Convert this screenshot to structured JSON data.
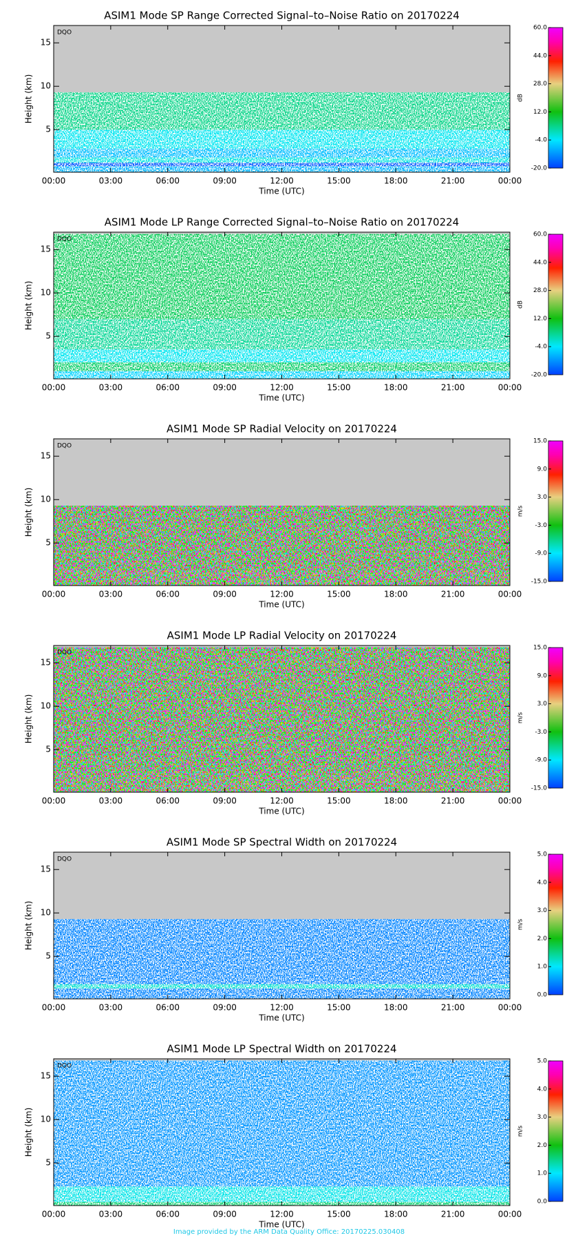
{
  "chart_data": [
    {
      "type": "heatmap",
      "title": "ASIM1 Mode SP Range Corrected Signal–to–Noise Ratio on 20170224",
      "x_label": "Time (UTC)",
      "y_label": "Height (km)",
      "flag": "DQO",
      "colorbar_label": "dB",
      "xlim": [
        0,
        24
      ],
      "xticks": [
        {
          "value": 0,
          "label": "00:00"
        },
        {
          "value": 3,
          "label": "03:00"
        },
        {
          "value": 6,
          "label": "06:00"
        },
        {
          "value": 9,
          "label": "09:00"
        },
        {
          "value": 12,
          "label": "12:00"
        },
        {
          "value": 15,
          "label": "15:00"
        },
        {
          "value": 18,
          "label": "18:00"
        },
        {
          "value": 21,
          "label": "21:00"
        },
        {
          "value": 24,
          "label": "00:00"
        }
      ],
      "ylim": [
        0.1,
        17
      ],
      "yticks": [
        5,
        10,
        15
      ],
      "clim": [
        -20,
        60
      ],
      "cticks": [
        {
          "value": -20,
          "label": "-20.0"
        },
        {
          "value": -4,
          "label": "-4.0"
        },
        {
          "value": 12,
          "label": "12.0"
        },
        {
          "value": 28,
          "label": "28.0"
        },
        {
          "value": 44,
          "label": "44.0"
        },
        {
          "value": 60,
          "label": "60.0"
        }
      ],
      "bands": [
        0.1,
        0.8,
        1.2,
        1.8,
        2.8,
        5,
        9.3
      ],
      "values": [
        -9,
        -18,
        -2,
        -8,
        -3,
        4
      ],
      "texture": "speckle"
    },
    {
      "type": "heatmap",
      "title": "ASIM1 Mode LP Range Corrected Signal–to–Noise Ratio on 20170224",
      "x_label": "Time (UTC)",
      "y_label": "Height (km)",
      "flag": "DQO",
      "colorbar_label": "dB",
      "xlim": [
        0,
        24
      ],
      "xticks": [
        {
          "value": 0,
          "label": "00:00"
        },
        {
          "value": 3,
          "label": "03:00"
        },
        {
          "value": 6,
          "label": "06:00"
        },
        {
          "value": 9,
          "label": "09:00"
        },
        {
          "value": 12,
          "label": "12:00"
        },
        {
          "value": 15,
          "label": "15:00"
        },
        {
          "value": 18,
          "label": "18:00"
        },
        {
          "value": 21,
          "label": "21:00"
        },
        {
          "value": 24,
          "label": "00:00"
        }
      ],
      "ylim": [
        0.1,
        17
      ],
      "yticks": [
        5,
        10,
        15
      ],
      "clim": [
        -20,
        60
      ],
      "cticks": [
        {
          "value": -20,
          "label": "-20.0"
        },
        {
          "value": -4,
          "label": "-4.0"
        },
        {
          "value": 12,
          "label": "12.0"
        },
        {
          "value": 28,
          "label": "28.0"
        },
        {
          "value": 44,
          "label": "44.0"
        },
        {
          "value": 60,
          "label": "60.0"
        }
      ],
      "bands": [
        0.1,
        1,
        2,
        3.5,
        7,
        16.8
      ],
      "values": [
        -6,
        6,
        -3,
        3,
        7
      ],
      "texture": "speckle"
    },
    {
      "type": "heatmap",
      "title": "ASIM1 Mode SP Radial Velocity  on 20170224",
      "x_label": "Time (UTC)",
      "y_label": "Height (km)",
      "flag": "DQO",
      "colorbar_label": "m/s",
      "xlim": [
        0,
        24
      ],
      "xticks": [
        {
          "value": 0,
          "label": "00:00"
        },
        {
          "value": 3,
          "label": "03:00"
        },
        {
          "value": 6,
          "label": "06:00"
        },
        {
          "value": 9,
          "label": "09:00"
        },
        {
          "value": 12,
          "label": "12:00"
        },
        {
          "value": 15,
          "label": "15:00"
        },
        {
          "value": 18,
          "label": "18:00"
        },
        {
          "value": 21,
          "label": "21:00"
        },
        {
          "value": 24,
          "label": "00:00"
        }
      ],
      "ylim": [
        0.1,
        17
      ],
      "yticks": [
        5,
        10,
        15
      ],
      "clim": [
        -15,
        15
      ],
      "cticks": [
        {
          "value": -15,
          "label": "-15.0"
        },
        {
          "value": -9,
          "label": "-9.0"
        },
        {
          "value": -3,
          "label": "-3.0"
        },
        {
          "value": 3,
          "label": "3.0"
        },
        {
          "value": 9,
          "label": "9.0"
        },
        {
          "value": 15,
          "label": "15.0"
        }
      ],
      "bands": [
        0.1,
        1.3,
        1.8,
        9.3
      ],
      "values": [
        1,
        2,
        0
      ],
      "texture": "color"
    },
    {
      "type": "heatmap",
      "title": "ASIM1 Mode LP Radial Velocity  on 20170224",
      "x_label": "Time (UTC)",
      "y_label": "Height (km)",
      "flag": "DQO",
      "colorbar_label": "m/s",
      "xlim": [
        0,
        24
      ],
      "xticks": [
        {
          "value": 0,
          "label": "00:00"
        },
        {
          "value": 3,
          "label": "03:00"
        },
        {
          "value": 6,
          "label": "06:00"
        },
        {
          "value": 9,
          "label": "09:00"
        },
        {
          "value": 12,
          "label": "12:00"
        },
        {
          "value": 15,
          "label": "15:00"
        },
        {
          "value": 18,
          "label": "18:00"
        },
        {
          "value": 21,
          "label": "21:00"
        },
        {
          "value": 24,
          "label": "00:00"
        }
      ],
      "ylim": [
        0.1,
        17
      ],
      "yticks": [
        5,
        10,
        15
      ],
      "clim": [
        -15,
        15
      ],
      "cticks": [
        {
          "value": -15,
          "label": "-15.0"
        },
        {
          "value": -9,
          "label": "-9.0"
        },
        {
          "value": -3,
          "label": "-3.0"
        },
        {
          "value": 3,
          "label": "3.0"
        },
        {
          "value": 9,
          "label": "9.0"
        },
        {
          "value": 15,
          "label": "15.0"
        }
      ],
      "bands": [
        0.1,
        2.5,
        16.8
      ],
      "values": [
        1,
        0
      ],
      "texture": "color"
    },
    {
      "type": "heatmap",
      "title": "ASIM1 Mode SP Spectral Width  on 20170224",
      "x_label": "Time (UTC)",
      "y_label": "Height (km)",
      "flag": "DQO",
      "colorbar_label": "m/s",
      "xlim": [
        0,
        24
      ],
      "xticks": [
        {
          "value": 0,
          "label": "00:00"
        },
        {
          "value": 3,
          "label": "03:00"
        },
        {
          "value": 6,
          "label": "06:00"
        },
        {
          "value": 9,
          "label": "09:00"
        },
        {
          "value": 12,
          "label": "12:00"
        },
        {
          "value": 15,
          "label": "15:00"
        },
        {
          "value": 18,
          "label": "18:00"
        },
        {
          "value": 21,
          "label": "21:00"
        },
        {
          "value": 24,
          "label": "00:00"
        }
      ],
      "ylim": [
        0.1,
        17
      ],
      "yticks": [
        5,
        10,
        15
      ],
      "clim": [
        0,
        5
      ],
      "cticks": [
        {
          "value": 0,
          "label": "0.0"
        },
        {
          "value": 1,
          "label": "1.0"
        },
        {
          "value": 2,
          "label": "2.0"
        },
        {
          "value": 3,
          "label": "3.0"
        },
        {
          "value": 4,
          "label": "4.0"
        },
        {
          "value": 5,
          "label": "5.0"
        }
      ],
      "bands": [
        0.1,
        1.3,
        1.8,
        9.3
      ],
      "values": [
        0.4,
        1.2,
        0.4
      ],
      "texture": "speckle"
    },
    {
      "type": "heatmap",
      "title": "ASIM1 Mode LP Spectral Width  on 20170224",
      "x_label": "Time (UTC)",
      "y_label": "Height (km)",
      "flag": "DQO",
      "colorbar_label": "m/s",
      "xlim": [
        0,
        24
      ],
      "xticks": [
        {
          "value": 0,
          "label": "00:00"
        },
        {
          "value": 3,
          "label": "03:00"
        },
        {
          "value": 6,
          "label": "06:00"
        },
        {
          "value": 9,
          "label": "09:00"
        },
        {
          "value": 12,
          "label": "12:00"
        },
        {
          "value": 15,
          "label": "15:00"
        },
        {
          "value": 18,
          "label": "18:00"
        },
        {
          "value": 21,
          "label": "21:00"
        },
        {
          "value": 24,
          "label": "00:00"
        }
      ],
      "ylim": [
        0.1,
        17
      ],
      "yticks": [
        5,
        10,
        15
      ],
      "clim": [
        0,
        5
      ],
      "cticks": [
        {
          "value": 0,
          "label": "0.0"
        },
        {
          "value": 1,
          "label": "1.0"
        },
        {
          "value": 2,
          "label": "2.0"
        },
        {
          "value": 3,
          "label": "3.0"
        },
        {
          "value": 4,
          "label": "4.0"
        },
        {
          "value": 5,
          "label": "5.0"
        }
      ],
      "bands": [
        0.1,
        0.5,
        2.3,
        16.8
      ],
      "values": [
        1.6,
        1.1,
        0.5
      ],
      "texture": "speckle"
    }
  ],
  "footer": "Image provided by the ARM Data Quality Office: 20170225.030408"
}
